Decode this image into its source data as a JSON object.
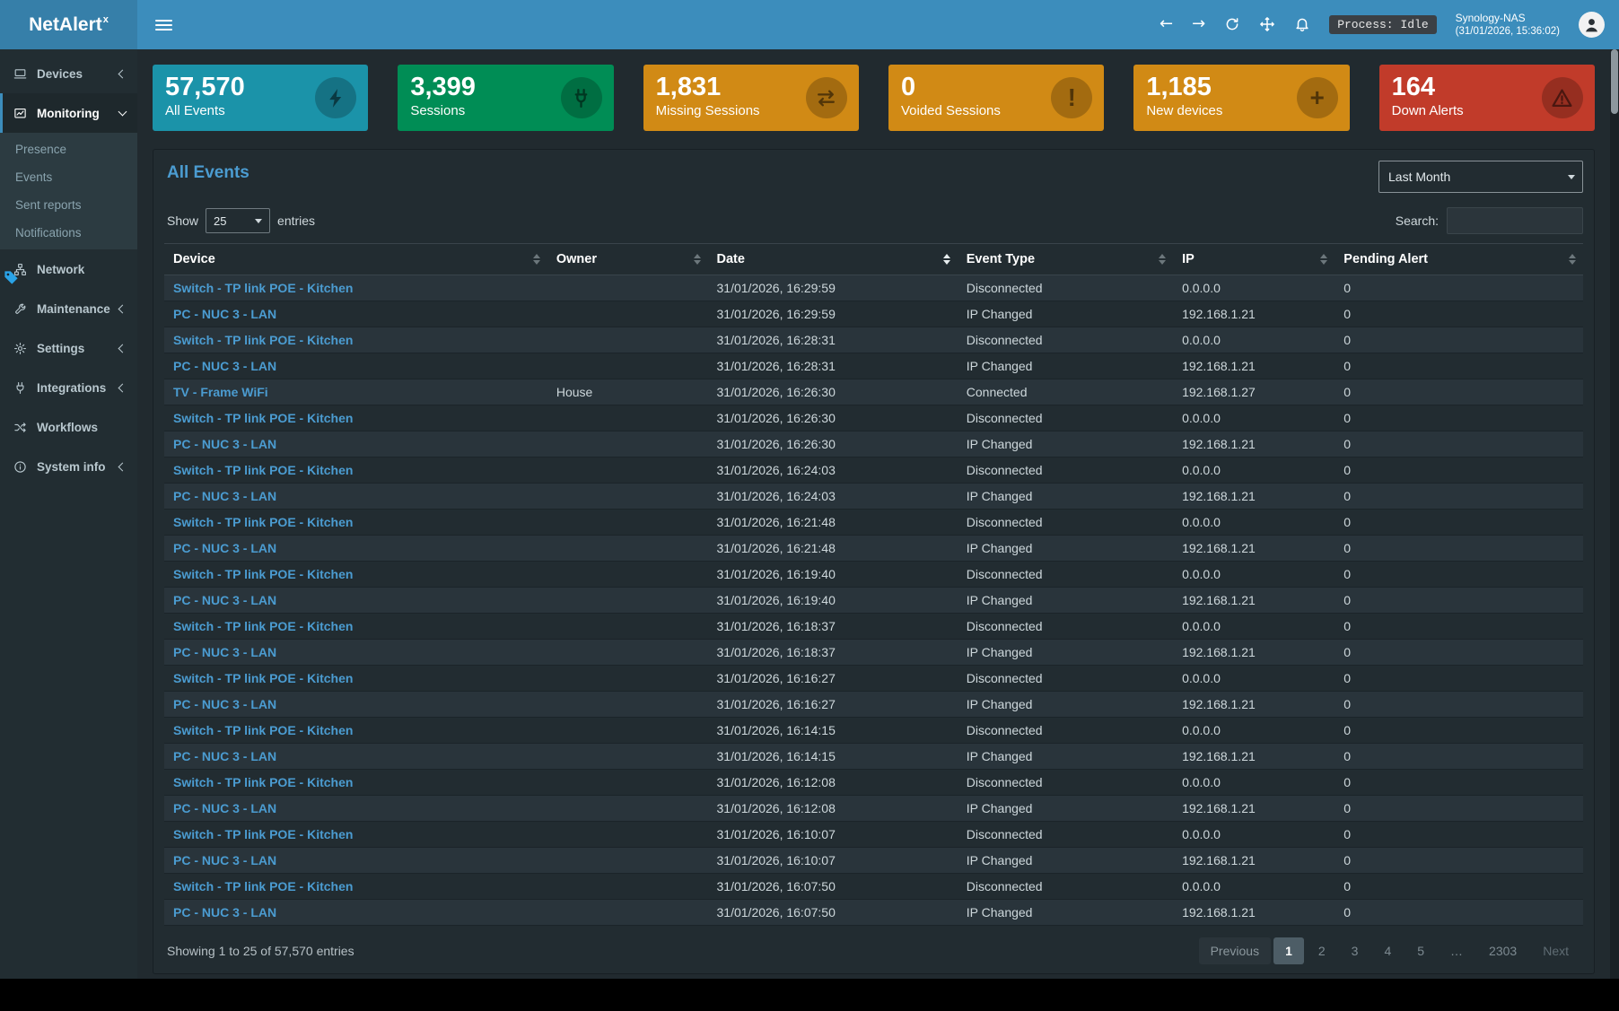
{
  "topbar": {
    "brand": "NetAlert",
    "brand_sup": "x",
    "process_badge": "Process: Idle",
    "host_name": "Synology-NAS",
    "host_time": "(31/01/2026, 15:36:02)"
  },
  "icons": {
    "back_arrow": "←",
    "forward_arrow": "→"
  },
  "sidebar": {
    "items": [
      {
        "id": "devices",
        "label": "Devices",
        "icon": "devices-icon",
        "chevron": "left"
      },
      {
        "id": "monitoring",
        "label": "Monitoring",
        "icon": "monitoring-icon",
        "chevron": "down",
        "active": true,
        "children": [
          "Presence",
          "Events",
          "Sent reports",
          "Notifications"
        ]
      },
      {
        "id": "network",
        "label": "Network",
        "icon": "network-icon"
      },
      {
        "id": "maintenance",
        "label": "Maintenance",
        "icon": "maintenance-icon",
        "chevron": "left"
      },
      {
        "id": "settings",
        "label": "Settings",
        "icon": "settings-icon",
        "chevron": "left"
      },
      {
        "id": "integrations",
        "label": "Integrations",
        "icon": "integrations-icon",
        "chevron": "left"
      },
      {
        "id": "workflows",
        "label": "Workflows",
        "icon": "workflows-icon"
      },
      {
        "id": "system-info",
        "label": "System info",
        "icon": "system-info-icon",
        "chevron": "left"
      }
    ]
  },
  "cards": [
    {
      "value": "57,570",
      "label": "All Events",
      "color": "#1b93a9",
      "icon": "bolt-icon"
    },
    {
      "value": "3,399",
      "label": "Sessions",
      "color": "#008d55",
      "icon": "plug-icon"
    },
    {
      "value": "1,831",
      "label": "Missing Sessions",
      "color": "#d18a15",
      "icon": "exchange-icon"
    },
    {
      "value": "0",
      "label": "Voided Sessions",
      "color": "#d18a15",
      "icon": "exclamation-icon"
    },
    {
      "value": "1,185",
      "label": "New devices",
      "color": "#d18a15",
      "icon": "plus-icon"
    },
    {
      "value": "164",
      "label": "Down Alerts",
      "color": "#c13b2a",
      "icon": "warning-icon"
    }
  ],
  "panel": {
    "title": "All Events",
    "period_selected": "Last Month",
    "show_label": "Show",
    "page_length": "25",
    "entries_label": "entries",
    "search_label": "Search:",
    "search_value": "",
    "footer_summary": "Showing 1 to 25 of 57,570 entries"
  },
  "table": {
    "headers": [
      "Device",
      "Owner",
      "Date",
      "Event Type",
      "IP",
      "Pending Alert"
    ],
    "sorted_column_index": 2,
    "rows": [
      [
        "Switch - TP link POE - Kitchen",
        "",
        "31/01/2026, 16:29:59",
        "Disconnected",
        "0.0.0.0",
        "0"
      ],
      [
        "PC - NUC 3 - LAN",
        "",
        "31/01/2026, 16:29:59",
        "IP Changed",
        "192.168.1.21",
        "0"
      ],
      [
        "Switch - TP link POE - Kitchen",
        "",
        "31/01/2026, 16:28:31",
        "Disconnected",
        "0.0.0.0",
        "0"
      ],
      [
        "PC - NUC 3 - LAN",
        "",
        "31/01/2026, 16:28:31",
        "IP Changed",
        "192.168.1.21",
        "0"
      ],
      [
        "TV - Frame WiFi",
        "House",
        "31/01/2026, 16:26:30",
        "Connected",
        "192.168.1.27",
        "0"
      ],
      [
        "Switch - TP link POE - Kitchen",
        "",
        "31/01/2026, 16:26:30",
        "Disconnected",
        "0.0.0.0",
        "0"
      ],
      [
        "PC - NUC 3 - LAN",
        "",
        "31/01/2026, 16:26:30",
        "IP Changed",
        "192.168.1.21",
        "0"
      ],
      [
        "Switch - TP link POE - Kitchen",
        "",
        "31/01/2026, 16:24:03",
        "Disconnected",
        "0.0.0.0",
        "0"
      ],
      [
        "PC - NUC 3 - LAN",
        "",
        "31/01/2026, 16:24:03",
        "IP Changed",
        "192.168.1.21",
        "0"
      ],
      [
        "Switch - TP link POE - Kitchen",
        "",
        "31/01/2026, 16:21:48",
        "Disconnected",
        "0.0.0.0",
        "0"
      ],
      [
        "PC - NUC 3 - LAN",
        "",
        "31/01/2026, 16:21:48",
        "IP Changed",
        "192.168.1.21",
        "0"
      ],
      [
        "Switch - TP link POE - Kitchen",
        "",
        "31/01/2026, 16:19:40",
        "Disconnected",
        "0.0.0.0",
        "0"
      ],
      [
        "PC - NUC 3 - LAN",
        "",
        "31/01/2026, 16:19:40",
        "IP Changed",
        "192.168.1.21",
        "0"
      ],
      [
        "Switch - TP link POE - Kitchen",
        "",
        "31/01/2026, 16:18:37",
        "Disconnected",
        "0.0.0.0",
        "0"
      ],
      [
        "PC - NUC 3 - LAN",
        "",
        "31/01/2026, 16:18:37",
        "IP Changed",
        "192.168.1.21",
        "0"
      ],
      [
        "Switch - TP link POE - Kitchen",
        "",
        "31/01/2026, 16:16:27",
        "Disconnected",
        "0.0.0.0",
        "0"
      ],
      [
        "PC - NUC 3 - LAN",
        "",
        "31/01/2026, 16:16:27",
        "IP Changed",
        "192.168.1.21",
        "0"
      ],
      [
        "Switch - TP link POE - Kitchen",
        "",
        "31/01/2026, 16:14:15",
        "Disconnected",
        "0.0.0.0",
        "0"
      ],
      [
        "PC - NUC 3 - LAN",
        "",
        "31/01/2026, 16:14:15",
        "IP Changed",
        "192.168.1.21",
        "0"
      ],
      [
        "Switch - TP link POE - Kitchen",
        "",
        "31/01/2026, 16:12:08",
        "Disconnected",
        "0.0.0.0",
        "0"
      ],
      [
        "PC - NUC 3 - LAN",
        "",
        "31/01/2026, 16:12:08",
        "IP Changed",
        "192.168.1.21",
        "0"
      ],
      [
        "Switch - TP link POE - Kitchen",
        "",
        "31/01/2026, 16:10:07",
        "Disconnected",
        "0.0.0.0",
        "0"
      ],
      [
        "PC - NUC 3 - LAN",
        "",
        "31/01/2026, 16:10:07",
        "IP Changed",
        "192.168.1.21",
        "0"
      ],
      [
        "Switch - TP link POE - Kitchen",
        "",
        "31/01/2026, 16:07:50",
        "Disconnected",
        "0.0.0.0",
        "0"
      ],
      [
        "PC - NUC 3 - LAN",
        "",
        "31/01/2026, 16:07:50",
        "IP Changed",
        "192.168.1.21",
        "0"
      ]
    ]
  },
  "pagination": {
    "previous_label": "Previous",
    "next_label": "Next",
    "pages": [
      "1",
      "2",
      "3",
      "4",
      "5",
      "…",
      "2303"
    ],
    "active_page": "1"
  }
}
